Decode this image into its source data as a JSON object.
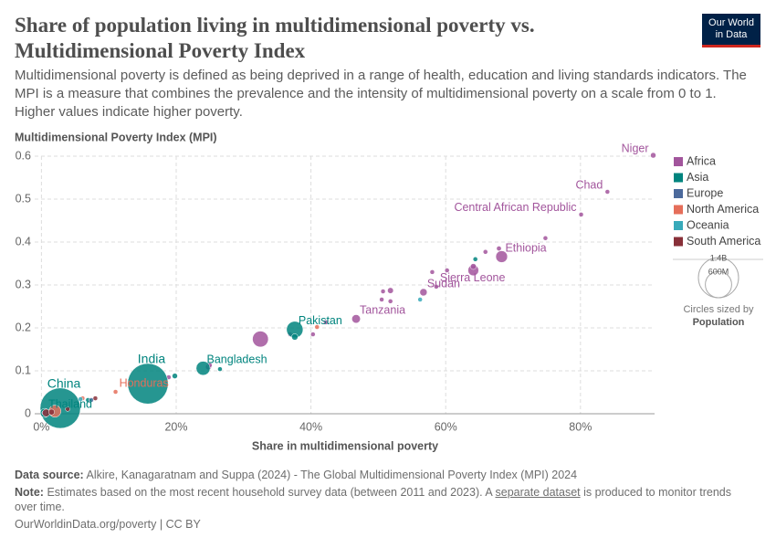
{
  "chart_data": {
    "type": "scatter",
    "title": "Share of population living in multidimensional poverty vs. Multidimensional Poverty Index",
    "subtitle": "Multidimensional poverty is defined as being deprived in a range of health, education and living standards indicators. The MPI is a measure that combines the prevalence and the intensity of multidimensional poverty on a scale from 0 to 1. Higher values indicate higher poverty.",
    "x_label": "Share in multidimensional poverty",
    "y_label": "Multidimensional Poverty Index (MPI)",
    "xlim": [
      -1,
      91
    ],
    "ylim": [
      0,
      0.6
    ],
    "xticks": [
      {
        "value": 0,
        "label": "0%"
      },
      {
        "value": 20,
        "label": "20%"
      },
      {
        "value": 40,
        "label": "40%"
      },
      {
        "value": 60,
        "label": "60%"
      },
      {
        "value": 80,
        "label": "80%"
      }
    ],
    "yticks": [
      0,
      0.1,
      0.2,
      0.3,
      0.4,
      0.5,
      0.6
    ],
    "grid": true,
    "legend": "right",
    "series": [
      {
        "name": "Africa",
        "color": "#a2559c",
        "x": [
          90.8,
          84.0,
          80.1,
          68.3,
          58.6,
          56.7,
          46.7,
          32.5,
          74.8,
          67.9,
          65.9,
          64.1,
          64.1,
          60.2,
          58.0,
          51.8,
          50.7,
          50.5,
          51.8,
          40.3,
          36.9,
          42.2,
          24.8,
          25.0,
          18.9,
          0.4
        ],
        "y": [
          0.602,
          0.517,
          0.464,
          0.366,
          0.296,
          0.283,
          0.221,
          0.174,
          0.409,
          0.385,
          0.377,
          0.334,
          0.343,
          0.334,
          0.33,
          0.287,
          0.285,
          0.266,
          0.262,
          0.185,
          0.185,
          0.213,
          0.109,
          0.113,
          0.085,
          0.0
        ],
        "sizes": [
          26000000,
          18000000,
          5000000,
          120000000,
          8000000,
          46000000,
          63000000,
          218000000,
          5000000,
          20000000,
          12000000,
          100000000,
          30000000,
          10000000,
          5000000,
          30000000,
          8000000,
          5000000,
          5000000,
          5000000,
          10000000,
          5000000,
          30000000,
          10000000,
          8000000,
          10000000
        ],
        "labels": [
          "Niger",
          "Chad",
          "Central African Republic",
          "Ethiopia",
          "Sierra Leone",
          "Sudan",
          "Tanzania",
          null,
          null,
          null,
          null,
          null,
          null,
          null,
          null,
          null,
          null,
          null,
          null,
          null,
          null,
          null,
          null,
          null,
          null,
          null
        ]
      },
      {
        "name": "Asia",
        "color": "#00847e",
        "x": [
          2.8,
          15.8,
          37.6,
          24.0,
          0.5,
          64.4,
          37.6,
          26.5,
          6.9,
          19.8
        ],
        "y": [
          0.013,
          0.07,
          0.196,
          0.106,
          0.002,
          0.36,
          0.179,
          0.104,
          0.032,
          0.088
        ],
        "sizes": [
          1410000000,
          1420000000,
          235000000,
          170000000,
          71000000,
          10000000,
          35000000,
          5000000,
          8000000,
          25000000
        ],
        "labels": [
          "China",
          "India",
          "Pakistan",
          "Bangladesh",
          "Thailand",
          null,
          null,
          null,
          null,
          null
        ]
      },
      {
        "name": "Europe",
        "color": "#4c6a9c",
        "x": [
          0.4,
          1.5,
          7.4
        ],
        "y": [
          0.002,
          0.004,
          0.032
        ],
        "sizes": [
          3000000,
          5000000,
          3000000
        ],
        "labels": [
          null,
          null,
          null
        ]
      },
      {
        "name": "North America",
        "color": "#e56e5a",
        "x": [
          11.0,
          40.9,
          6.1,
          2.0
        ],
        "y": [
          0.051,
          0.202,
          0.036,
          0.006
        ],
        "sizes": [
          10000000,
          11000000,
          17000000,
          127000000
        ],
        "labels": [
          "Honduras",
          null,
          null,
          null
        ]
      },
      {
        "name": "Oceania",
        "color": "#38aaba",
        "x": [
          56.2,
          5.8
        ],
        "y": [
          0.266,
          0.034
        ],
        "sizes": [
          10000000,
          1000000
        ],
        "labels": [
          null,
          null
        ]
      },
      {
        "name": "South America",
        "color": "#883039",
        "x": [
          0.7,
          3.9,
          8.0,
          1.5
        ],
        "y": [
          0.002,
          0.011,
          0.036,
          0.004
        ],
        "sizes": [
          50000000,
          12000000,
          11000000,
          30000000
        ],
        "labels": [
          null,
          null,
          null,
          null
        ]
      }
    ],
    "size_legend": {
      "ticks": [
        {
          "value": 1400000000,
          "label": "1.4B"
        },
        {
          "value": 600000000,
          "label": "600M"
        }
      ],
      "title": "Circles sized by",
      "variable": "Population"
    }
  },
  "logo": {
    "line1": "Our World",
    "line2": "in Data"
  },
  "footer": {
    "source_label": "Data source:",
    "source": "Alkire, Kanagaratnam and Suppa (2024) - The Global Multidimensional Poverty Index (MPI) 2024",
    "note_label": "Note:",
    "note_before": "Estimates based on the most recent household survey data (between 2011 and 2023). A ",
    "note_link": "separate dataset",
    "note_after": " is produced to monitor trends over time.",
    "url": "OurWorldinData.org/poverty | CC BY"
  }
}
